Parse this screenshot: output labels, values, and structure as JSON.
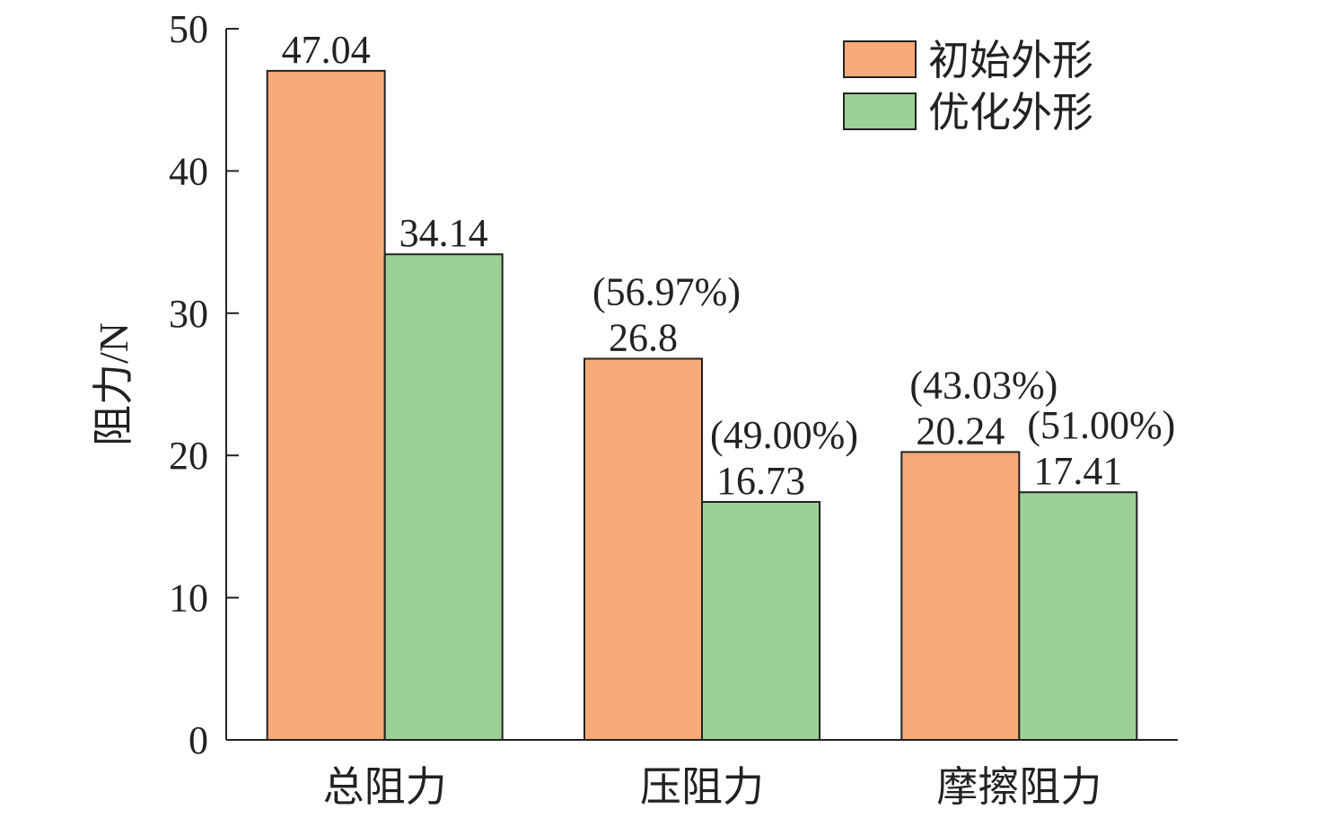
{
  "chart_data": {
    "type": "bar",
    "title": "",
    "xlabel": "",
    "ylabel": "阻力/N",
    "ylim": [
      0,
      50
    ],
    "yticks": [
      0,
      10,
      20,
      30,
      40,
      50
    ],
    "grid": false,
    "legend_position": "top-right",
    "categories": [
      "总阻力",
      "压阻力",
      "摩擦阻力"
    ],
    "series": [
      {
        "name": "初始外形",
        "color": "#F6AB78",
        "values": [
          47.04,
          26.8,
          20.24
        ],
        "value_labels": [
          "47.04",
          "26.8",
          "20.24"
        ],
        "pct_labels": [
          "",
          "(56.97%)",
          "(43.03%)"
        ]
      },
      {
        "name": "优化外形",
        "color": "#9CD196",
        "values": [
          34.14,
          16.73,
          17.41
        ],
        "value_labels": [
          "34.14",
          "16.73",
          "17.41"
        ],
        "pct_labels": [
          "",
          "(49.00%)",
          "(51.00%)"
        ]
      }
    ]
  }
}
